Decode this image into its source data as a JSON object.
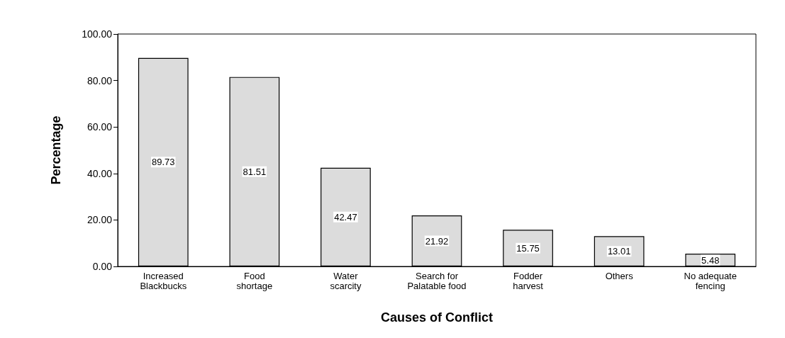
{
  "chart_data": {
    "type": "bar",
    "xlabel": "Causes of Conflict",
    "ylabel": "Percentage",
    "categories": [
      "Increased\nBlackbucks",
      "Food\nshortage",
      "Water\nscarcity",
      "Search for\nPalatable food",
      "Fodder\nharvest",
      "Others",
      "No adequate\nfencing"
    ],
    "values": [
      89.73,
      81.51,
      42.47,
      21.92,
      15.75,
      13.01,
      5.48
    ],
    "color": "#dcdcdc",
    "ylim": [
      0,
      100
    ],
    "yticks": [
      {
        "value": 0,
        "label": "0.00"
      },
      {
        "value": 20,
        "label": "20.00"
      },
      {
        "value": 40,
        "label": "40.00"
      },
      {
        "value": 60,
        "label": "60.00"
      },
      {
        "value": 80,
        "label": "80.00"
      },
      {
        "value": 100,
        "label": "100.00"
      }
    ],
    "grid": false,
    "data_labels": true
  }
}
